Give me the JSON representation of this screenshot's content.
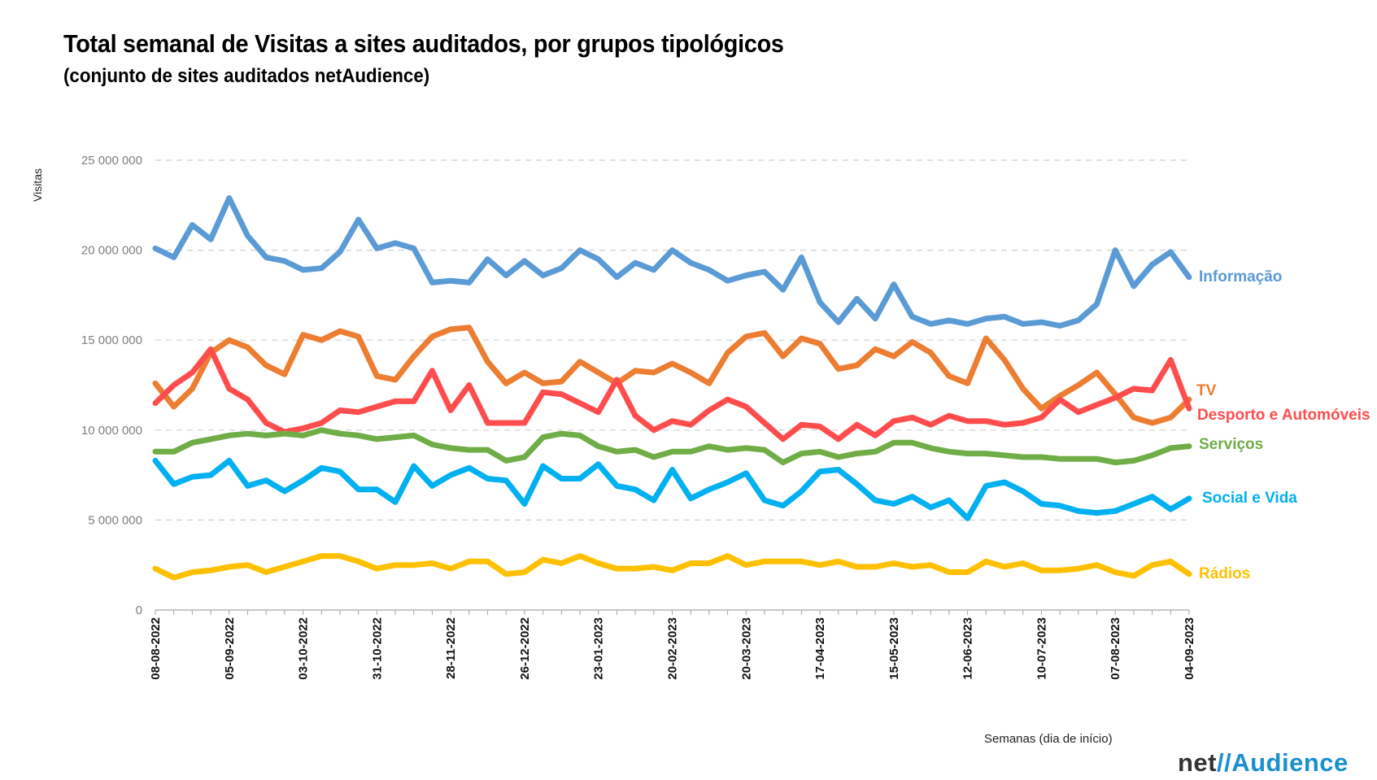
{
  "chart_data": {
    "type": "line",
    "title": "Total semanal de Visitas a sites auditados, por grupos tipológicos",
    "subtitle": "(conjunto de sites auditados netAudience)",
    "xlabel": "Semanas  (dia de início)",
    "ylabel": "Visitas",
    "ylim": [
      0,
      25000000
    ],
    "yticks": [
      0,
      5000000,
      10000000,
      15000000,
      20000000,
      25000000
    ],
    "ytick_labels": [
      "0",
      "5 000 000",
      "10 000 000",
      "15 000 000",
      "20 000 000",
      "25 000 000"
    ],
    "grid": "horizontal dashed",
    "x_count": 57,
    "xtick_labels": [
      {
        "index": 0,
        "label": "08-08-2022"
      },
      {
        "index": 4,
        "label": "05-09-2022"
      },
      {
        "index": 8,
        "label": "03-10-2022"
      },
      {
        "index": 12,
        "label": "31-10-2022"
      },
      {
        "index": 16,
        "label": "28-11-2022"
      },
      {
        "index": 20,
        "label": "26-12-2022"
      },
      {
        "index": 24,
        "label": "23-01-2023"
      },
      {
        "index": 28,
        "label": "20-02-2023"
      },
      {
        "index": 32,
        "label": "20-03-2023"
      },
      {
        "index": 36,
        "label": "17-04-2023"
      },
      {
        "index": 40,
        "label": "15-05-2023"
      },
      {
        "index": 44,
        "label": "12-06-2023"
      },
      {
        "index": 48,
        "label": "10-07-2023"
      },
      {
        "index": 52,
        "label": "07-08-2023"
      },
      {
        "index": 56,
        "label": "04-09-2023"
      }
    ],
    "series": [
      {
        "name": "Informação",
        "color": "#5b9bd5",
        "values": [
          20100000,
          19600000,
          21400000,
          20600000,
          22900000,
          20800000,
          19600000,
          19400000,
          18900000,
          19000000,
          19900000,
          21700000,
          20100000,
          20400000,
          20100000,
          18200000,
          18300000,
          18200000,
          19500000,
          18600000,
          19400000,
          18600000,
          19000000,
          20000000,
          19500000,
          18500000,
          19300000,
          18900000,
          20000000,
          19300000,
          18900000,
          18300000,
          18600000,
          18800000,
          17800000,
          19600000,
          17100000,
          16000000,
          17300000,
          16200000,
          18100000,
          16300000,
          15900000,
          16100000,
          15900000,
          16200000,
          16300000,
          15900000,
          16000000,
          15800000,
          16100000,
          17000000,
          20000000,
          18000000,
          19200000,
          19900000,
          18500000
        ]
      },
      {
        "name": "TV",
        "color": "#ed7d31",
        "values": [
          12600000,
          11300000,
          12300000,
          14300000,
          15000000,
          14600000,
          13600000,
          13100000,
          15300000,
          15000000,
          15500000,
          15200000,
          13000000,
          12800000,
          14100000,
          15200000,
          15600000,
          15700000,
          13800000,
          12600000,
          13200000,
          12600000,
          12700000,
          13800000,
          13200000,
          12600000,
          13300000,
          13200000,
          13700000,
          13200000,
          12600000,
          14300000,
          15200000,
          15400000,
          14100000,
          15100000,
          14800000,
          13400000,
          13600000,
          14500000,
          14100000,
          14900000,
          14300000,
          13000000,
          12600000,
          15100000,
          13900000,
          12300000,
          11200000,
          11900000,
          12500000,
          13200000,
          12000000,
          10700000,
          10400000,
          10700000,
          11700000
        ]
      },
      {
        "name": "Desporto e Automóveis",
        "color": "#ff4d4d",
        "values": [
          11500000,
          12500000,
          13200000,
          14500000,
          12300000,
          11700000,
          10400000,
          9900000,
          10100000,
          10400000,
          11100000,
          11000000,
          11300000,
          11600000,
          11600000,
          13300000,
          11100000,
          12500000,
          10400000,
          10400000,
          10400000,
          12100000,
          12000000,
          11500000,
          11000000,
          12800000,
          10800000,
          10000000,
          10500000,
          10300000,
          11100000,
          11700000,
          11300000,
          10400000,
          9500000,
          10300000,
          10200000,
          9500000,
          10300000,
          9700000,
          10500000,
          10700000,
          10300000,
          10800000,
          10500000,
          10500000,
          10300000,
          10400000,
          10700000,
          11700000,
          11000000,
          11400000,
          11800000,
          12300000,
          12200000,
          13900000,
          11200000
        ]
      },
      {
        "name": "Serviços",
        "color": "#70ad47",
        "values": [
          8800000,
          8800000,
          9300000,
          9500000,
          9700000,
          9800000,
          9700000,
          9800000,
          9700000,
          10000000,
          9800000,
          9700000,
          9500000,
          9600000,
          9700000,
          9200000,
          9000000,
          8900000,
          8900000,
          8300000,
          8500000,
          9600000,
          9800000,
          9700000,
          9100000,
          8800000,
          8900000,
          8500000,
          8800000,
          8800000,
          9100000,
          8900000,
          9000000,
          8900000,
          8200000,
          8700000,
          8800000,
          8500000,
          8700000,
          8800000,
          9300000,
          9300000,
          9000000,
          8800000,
          8700000,
          8700000,
          8600000,
          8500000,
          8500000,
          8400000,
          8400000,
          8400000,
          8200000,
          8300000,
          8600000,
          9000000,
          9100000
        ]
      },
      {
        "name": "Social e Vida",
        "color": "#00b0f0",
        "values": [
          8300000,
          7000000,
          7400000,
          7500000,
          8300000,
          6900000,
          7200000,
          6600000,
          7200000,
          7900000,
          7700000,
          6700000,
          6700000,
          6000000,
          8000000,
          6900000,
          7500000,
          7900000,
          7300000,
          7200000,
          5900000,
          8000000,
          7300000,
          7300000,
          8100000,
          6900000,
          6700000,
          6100000,
          7800000,
          6200000,
          6700000,
          7100000,
          7600000,
          6100000,
          5800000,
          6600000,
          7700000,
          7800000,
          7000000,
          6100000,
          5900000,
          6300000,
          5700000,
          6100000,
          5100000,
          6900000,
          7100000,
          6600000,
          5900000,
          5800000,
          5500000,
          5400000,
          5500000,
          5900000,
          6300000,
          5600000,
          6200000
        ]
      },
      {
        "name": "Rádios",
        "color": "#ffc000",
        "values": [
          2300000,
          1800000,
          2100000,
          2200000,
          2400000,
          2500000,
          2100000,
          2400000,
          2700000,
          3000000,
          3000000,
          2700000,
          2300000,
          2500000,
          2500000,
          2600000,
          2300000,
          2700000,
          2700000,
          2000000,
          2100000,
          2800000,
          2600000,
          3000000,
          2600000,
          2300000,
          2300000,
          2400000,
          2200000,
          2600000,
          2600000,
          3000000,
          2500000,
          2700000,
          2700000,
          2700000,
          2500000,
          2700000,
          2400000,
          2400000,
          2600000,
          2400000,
          2500000,
          2100000,
          2100000,
          2700000,
          2400000,
          2600000,
          2200000,
          2200000,
          2300000,
          2500000,
          2100000,
          1900000,
          2500000,
          2700000,
          2000000
        ]
      }
    ]
  },
  "logo": {
    "net": "net",
    "slash": "//",
    "audience": "Audience"
  }
}
